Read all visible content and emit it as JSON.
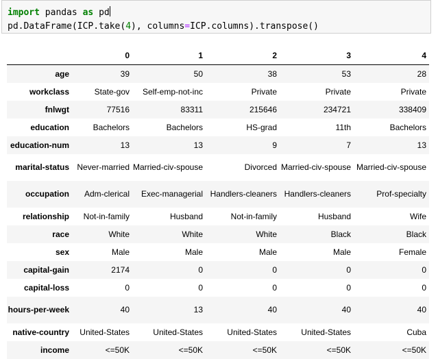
{
  "code": {
    "line1_kw1": "import",
    "line1_mid": " pandas ",
    "line1_kw2": "as",
    "line1_end": " pd",
    "line2_a": "pd.DataFrame(ICP.take(",
    "line2_num": "4",
    "line2_b": "), columns",
    "line2_eq": "=",
    "line2_c": "ICP.columns).transpose()"
  },
  "table": {
    "columns": [
      "0",
      "1",
      "2",
      "3",
      "4"
    ],
    "rows": [
      {
        "label": "age",
        "cells": [
          "39",
          "50",
          "38",
          "53",
          "28"
        ]
      },
      {
        "label": "workclass",
        "cells": [
          "State-gov",
          "Self-emp-not-inc",
          "Private",
          "Private",
          "Private"
        ]
      },
      {
        "label": "fnlwgt",
        "cells": [
          "77516",
          "83311",
          "215646",
          "234721",
          "338409"
        ]
      },
      {
        "label": "education",
        "cells": [
          "Bachelors",
          "Bachelors",
          "HS-grad",
          "11th",
          "Bachelors"
        ]
      },
      {
        "label": "education-num",
        "cells": [
          "13",
          "13",
          "9",
          "7",
          "13"
        ]
      },
      {
        "label": "marital-status",
        "cells": [
          "Never-married",
          "Married-civ-spouse",
          "Divorced",
          "Married-civ-spouse",
          "Married-civ-spouse"
        ]
      },
      {
        "label": "occupation",
        "cells": [
          "Adm-clerical",
          "Exec-managerial",
          "Handlers-cleaners",
          "Handlers-cleaners",
          "Prof-specialty"
        ]
      },
      {
        "label": "relationship",
        "cells": [
          "Not-in-family",
          "Husband",
          "Not-in-family",
          "Husband",
          "Wife"
        ]
      },
      {
        "label": "race",
        "cells": [
          "White",
          "White",
          "White",
          "Black",
          "Black"
        ]
      },
      {
        "label": "sex",
        "cells": [
          "Male",
          "Male",
          "Male",
          "Male",
          "Female"
        ]
      },
      {
        "label": "capital-gain",
        "cells": [
          "2174",
          "0",
          "0",
          "0",
          "0"
        ]
      },
      {
        "label": "capital-loss",
        "cells": [
          "0",
          "0",
          "0",
          "0",
          "0"
        ]
      },
      {
        "label": "hours-per-week",
        "cells": [
          "40",
          "13",
          "40",
          "40",
          "40"
        ]
      },
      {
        "label": "native-country",
        "cells": [
          "United-States",
          "United-States",
          "United-States",
          "United-States",
          "Cuba"
        ]
      },
      {
        "label": "income",
        "cells": [
          "<=50K",
          "<=50K",
          "<=50K",
          "<=50K",
          "<=50K"
        ]
      }
    ]
  }
}
